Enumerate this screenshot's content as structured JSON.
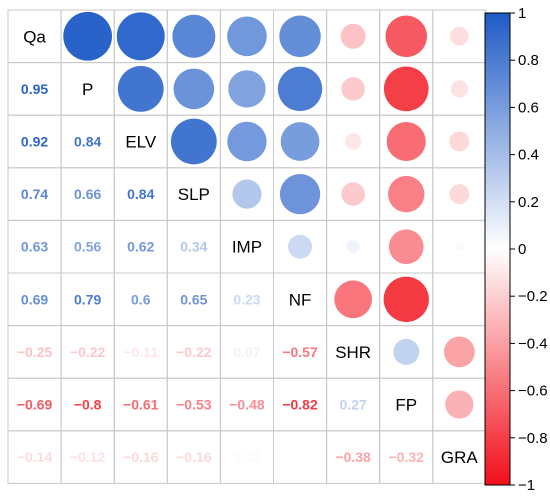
{
  "chart_data": {
    "type": "heatmap",
    "subtype": "correlation-matrix",
    "upper_triangle": "circles",
    "lower_triangle": "numbers",
    "variables": [
      "Qa",
      "P",
      "ELV",
      "SLP",
      "IMP",
      "NF",
      "SHR",
      "FP",
      "GRA"
    ],
    "matrix": [
      [
        1,
        0.95,
        0.92,
        0.74,
        0.63,
        0.69,
        -0.25,
        -0.69,
        -0.14
      ],
      [
        0.95,
        1,
        0.84,
        0.66,
        0.56,
        0.79,
        -0.22,
        -0.8,
        -0.12
      ],
      [
        0.92,
        0.84,
        1,
        0.84,
        0.62,
        0.6,
        -0.11,
        -0.61,
        -0.16
      ],
      [
        0.74,
        0.66,
        0.84,
        1,
        0.34,
        0.65,
        -0.22,
        -0.53,
        -0.16
      ],
      [
        0.63,
        0.56,
        0.62,
        0.34,
        1,
        0.23,
        0.07,
        -0.48,
        0.03
      ],
      [
        0.69,
        0.79,
        0.6,
        0.65,
        0.23,
        1,
        -0.57,
        -0.82,
        0
      ],
      [
        -0.25,
        -0.22,
        -0.11,
        -0.22,
        0.07,
        -0.57,
        1,
        0.27,
        -0.38
      ],
      [
        -0.69,
        -0.8,
        -0.61,
        -0.53,
        -0.48,
        -0.82,
        0.27,
        1,
        -0.32
      ],
      [
        -0.14,
        -0.12,
        -0.16,
        -0.16,
        0.03,
        0,
        -0.38,
        -0.32,
        1
      ]
    ],
    "lower_labels": [
      [
        "0.95"
      ],
      [
        "0.92",
        "0.84"
      ],
      [
        "0.74",
        "0.66",
        "0.84"
      ],
      [
        "0.63",
        "0.56",
        "0.62",
        "0.34"
      ],
      [
        "0.69",
        "0.79",
        "0.6",
        "0.65",
        "0.23"
      ],
      [
        "−0.25",
        "−0.22",
        "−0.11",
        "−0.22",
        "0.07",
        "−0.57"
      ],
      [
        "−0.69",
        "−0.8",
        "−0.61",
        "−0.53",
        "−0.48",
        "−0.82",
        "0.27"
      ],
      [
        "−0.14",
        "−0.12",
        "−0.16",
        "−0.16",
        "0.03",
        "",
        "−0.38",
        "−0.32"
      ]
    ],
    "colorbar": {
      "range": [
        -1,
        1
      ],
      "ticks": [
        1,
        0.8,
        0.6,
        0.4,
        0.2,
        0,
        -0.2,
        -0.4,
        -0.6,
        -0.8,
        -1
      ],
      "tick_labels": [
        "1",
        "0.8",
        "0.6",
        "0.4",
        "0.2",
        "0",
        "−0.2",
        "−0.4",
        "−0.6",
        "−0.8",
        "−1"
      ],
      "placement": "right"
    },
    "colors": {
      "positive": "#1e5bc6",
      "neutral": "#ffffff",
      "negative": "#f20f1a",
      "grid": "#c8c8c8",
      "text": "#000000"
    }
  }
}
